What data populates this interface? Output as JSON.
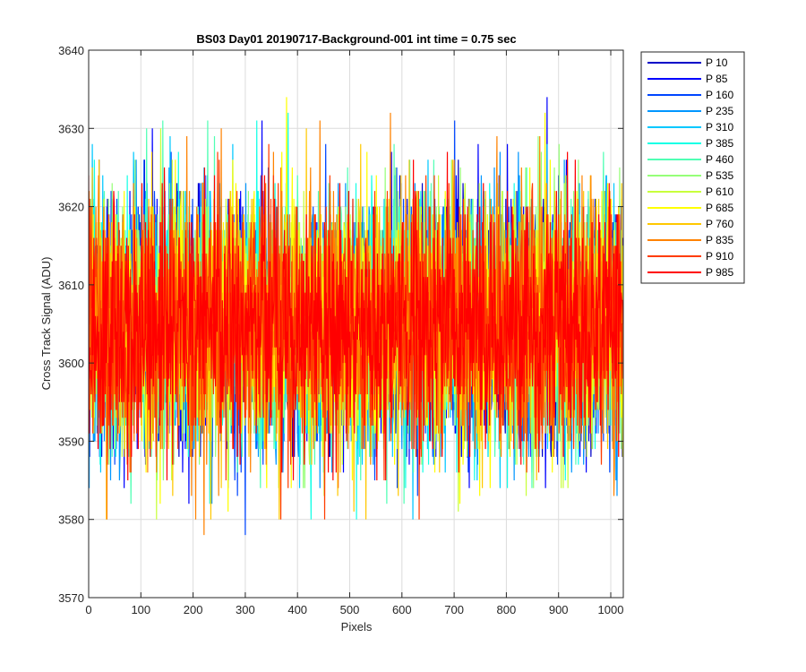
{
  "chart_data": {
    "type": "line",
    "title": "BS03 Day01 20190717-Background-001 int time = 0.75 sec",
    "xlabel": "Pixels",
    "ylabel": "Cross Track Signal (ADU)",
    "xlim": [
      0,
      1024
    ],
    "ylim": [
      3570,
      3640
    ],
    "xticks": [
      0,
      100,
      200,
      300,
      400,
      500,
      600,
      700,
      800,
      900,
      1000
    ],
    "yticks": [
      3570,
      3580,
      3590,
      3600,
      3610,
      3620,
      3630,
      3640
    ],
    "grid": true,
    "legend_position": "outside-right-top",
    "noise_model": {
      "mean": 3605,
      "std": 8,
      "num_points": 1024
    },
    "series": [
      {
        "name": "P 10",
        "color": "#0000c8",
        "min": 3588,
        "max": 3626
      },
      {
        "name": "P 85",
        "color": "#0000ff",
        "min": 3578,
        "max": 3638
      },
      {
        "name": "P 160",
        "color": "#0046ff",
        "min": 3578,
        "max": 3632
      },
      {
        "name": "P 235",
        "color": "#0096ff",
        "min": 3577,
        "max": 3632
      },
      {
        "name": "P 310",
        "color": "#00c8ff",
        "min": 3578,
        "max": 3636
      },
      {
        "name": "P 385",
        "color": "#14ffe6",
        "min": 3580,
        "max": 3634
      },
      {
        "name": "P 460",
        "color": "#50ffb4",
        "min": 3581,
        "max": 3631
      },
      {
        "name": "P 535",
        "color": "#96ff78",
        "min": 3582,
        "max": 3631
      },
      {
        "name": "P 610",
        "color": "#c8ff3c",
        "min": 3578,
        "max": 3632
      },
      {
        "name": "P 685",
        "color": "#ffff00",
        "min": 3579,
        "max": 3635
      },
      {
        "name": "P 760",
        "color": "#ffc800",
        "min": 3576,
        "max": 3632
      },
      {
        "name": "P 835",
        "color": "#ff8200",
        "min": 3578,
        "max": 3638
      },
      {
        "name": "P 910",
        "color": "#ff3c00",
        "min": 3580,
        "max": 3632
      },
      {
        "name": "P 985",
        "color": "#ff0000",
        "min": 3585,
        "max": 3627
      }
    ]
  }
}
